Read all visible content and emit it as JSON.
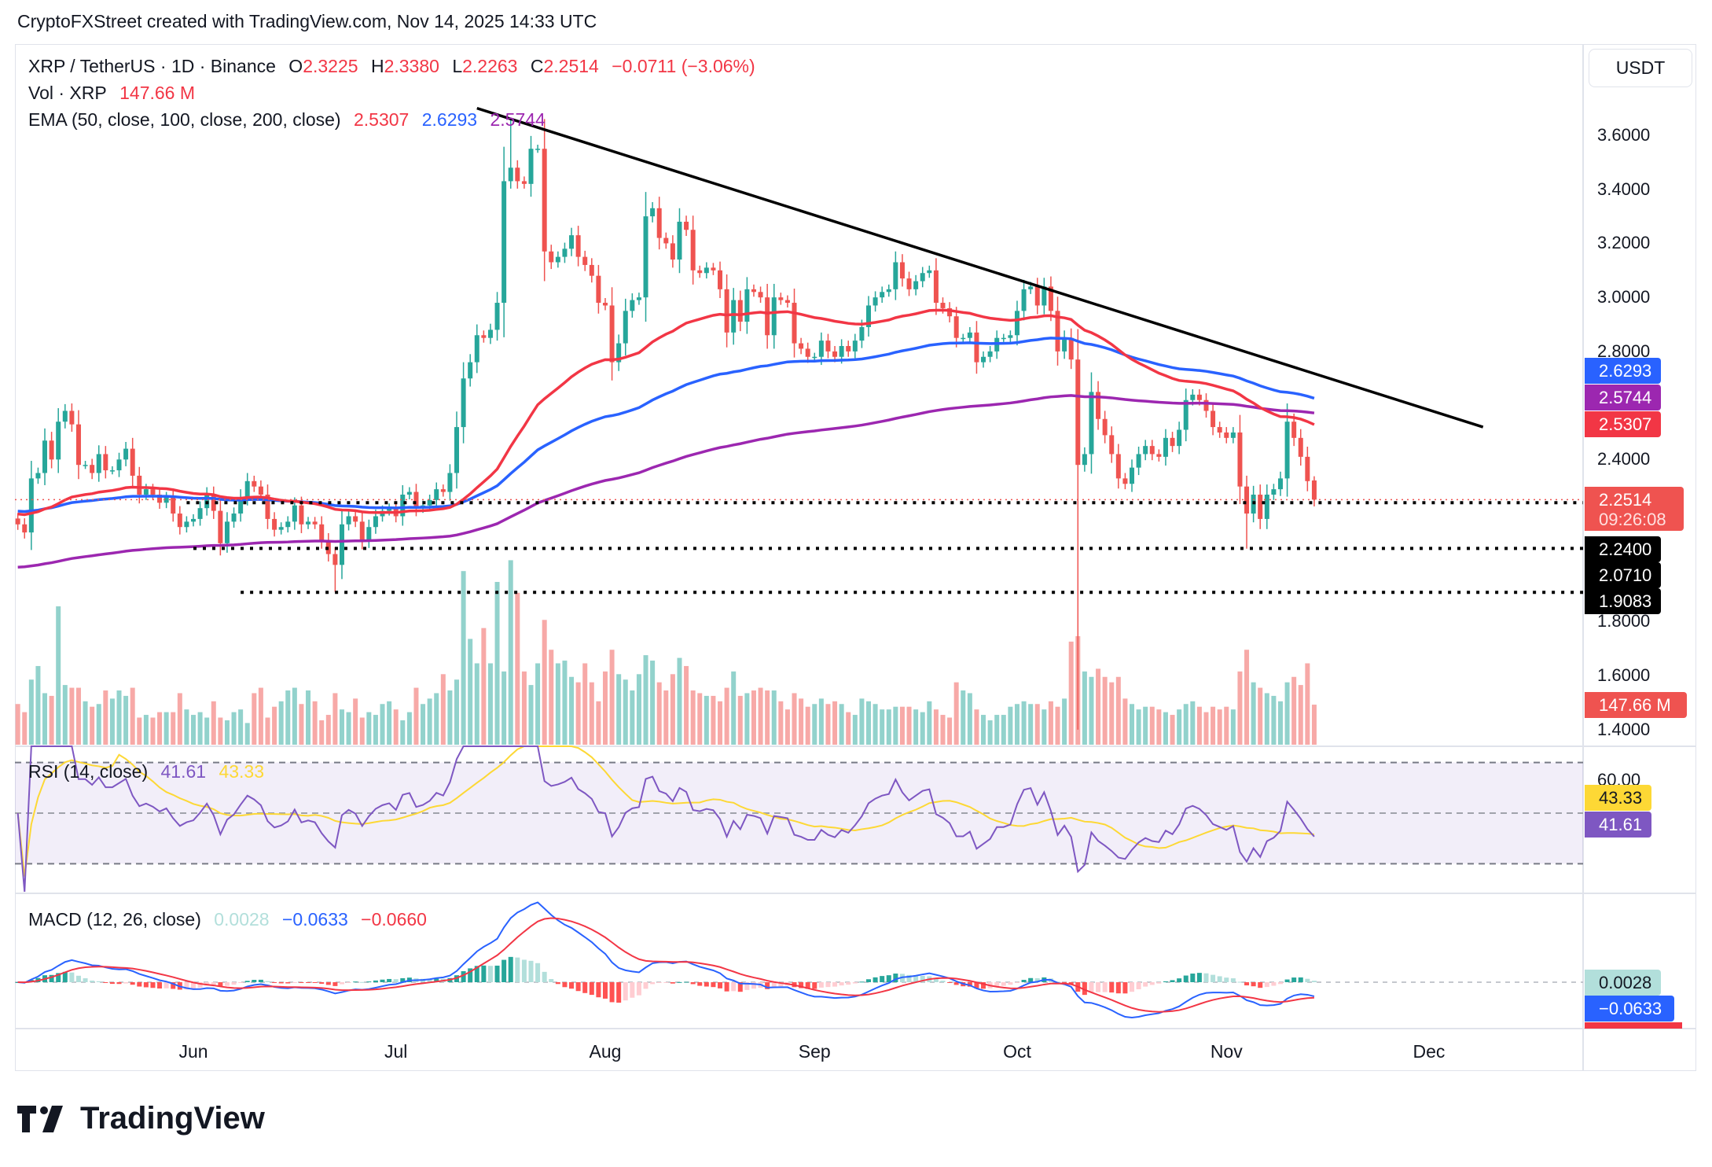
{
  "credit": "CryptoFXStreet created with TradingView.com, Nov 14, 2025 14:33 UTC",
  "legend": {
    "symbol": "XRP / TetherUS · 1D · Binance",
    "o_label": "O",
    "o": "2.3225",
    "h_label": "H",
    "h": "2.3380",
    "l_label": "L",
    "l": "2.2263",
    "c_label": "C",
    "c": "2.2514",
    "change": "−0.0711 (−3.06%)",
    "vol_label": "Vol · XRP",
    "vol": "147.66 M",
    "ema_label": "EMA (50, close, 100, close, 200, close)",
    "ema50": "2.5307",
    "ema100": "2.6293",
    "ema200": "2.5744",
    "rsi_label": "RSI (14, close)",
    "rsi": "41.61",
    "rsi_ma": "43.33",
    "macd_label": "MACD (12, 26, close)",
    "macd_hist": "0.0028",
    "macd": "−0.0633",
    "macd_signal": "−0.0660"
  },
  "currency_button": "USDT",
  "axis": {
    "price_ticks": [
      "3.6000",
      "3.4000",
      "3.2000",
      "3.0000",
      "2.8000",
      "2.4000",
      "1.8000",
      "1.6000",
      "1.4000"
    ],
    "rsi_tick": "60.00",
    "months": [
      {
        "label": "Jun",
        "date": "2025-06-01"
      },
      {
        "label": "Jul",
        "date": "2025-07-01"
      },
      {
        "label": "Aug",
        "date": "2025-08-01"
      },
      {
        "label": "Sep",
        "date": "2025-09-01"
      },
      {
        "label": "Oct",
        "date": "2025-10-01"
      },
      {
        "label": "Nov",
        "date": "2025-11-01"
      },
      {
        "label": "Dec",
        "date": "2025-12-01"
      }
    ]
  },
  "price_labels": {
    "ema100": "2.6293",
    "ema200": "2.5744",
    "ema50": "2.5307",
    "last": "2.2514",
    "countdown": "09:26:08",
    "support1": "2.2400",
    "support2": "2.0710",
    "support3": "1.9083",
    "volume": "147.66 M",
    "rsi_ma": "43.33",
    "rsi": "41.61",
    "macd_hist": "0.0028",
    "macd": "−0.0633"
  },
  "colors": {
    "up": "#26a69a",
    "down": "#ef5350",
    "ema50": "#f23645",
    "ema100": "#2962ff",
    "ema200": "#9c27b0",
    "rsi": "#7e57c2",
    "rsi_ma": "#fdd835",
    "macd": "#2962ff",
    "signal": "#f23645"
  },
  "chart_data": {
    "type": "candlestick",
    "symbol": "XRP / TetherUS",
    "interval": "1D",
    "y_range": [
      1.4,
      3.6
    ],
    "y_unit": "USDT",
    "ema_start": {
      "ema50": 2.2,
      "ema100": 2.21,
      "ema200": 2.0
    },
    "trendline": [
      {
        "date": "2025-07-13",
        "price": 3.7
      },
      {
        "date": "2025-12-09",
        "price": 2.52
      }
    ],
    "horizontal_levels": [
      {
        "price": 2.2514,
        "style": "red-dotted",
        "label": "2.2514"
      },
      {
        "price": 2.24,
        "style": "black-dotted",
        "from": "2025-05-31",
        "label": "2.2400"
      },
      {
        "price": 2.071,
        "style": "black-dotted",
        "from": "2025-06-01",
        "label": "2.0710"
      },
      {
        "price": 1.9083,
        "style": "black-dotted",
        "from": "2025-06-08",
        "label": "1.9083"
      }
    ],
    "wick_extremes": [
      {
        "date": "2025-07-18",
        "high": 3.66
      },
      {
        "date": "2025-06-22",
        "low": 1.91
      },
      {
        "date": "2025-10-10",
        "low": 1.4
      },
      {
        "date": "2025-11-04",
        "low": 2.07
      }
    ],
    "last_bar": {
      "open": 2.3225,
      "high": 2.338,
      "low": 2.2263,
      "close": 2.2514,
      "volume_m": 147.66
    },
    "candle_fields": [
      "date",
      "close",
      "volume_m"
    ],
    "candles": [
      [
        "2025-05-06",
        2.16,
        150
      ],
      [
        "2025-05-07",
        2.13,
        120
      ],
      [
        "2025-05-08",
        2.33,
        240
      ],
      [
        "2025-05-09",
        2.35,
        290
      ],
      [
        "2025-05-10",
        2.47,
        190
      ],
      [
        "2025-05-11",
        2.4,
        180
      ],
      [
        "2025-05-12",
        2.54,
        510
      ],
      [
        "2025-05-13",
        2.58,
        220
      ],
      [
        "2025-05-14",
        2.53,
        210
      ],
      [
        "2025-05-15",
        2.38,
        210
      ],
      [
        "2025-05-16",
        2.38,
        160
      ],
      [
        "2025-05-17",
        2.35,
        140
      ],
      [
        "2025-05-18",
        2.42,
        150
      ],
      [
        "2025-05-19",
        2.36,
        200
      ],
      [
        "2025-05-20",
        2.36,
        170
      ],
      [
        "2025-05-21",
        2.4,
        200
      ],
      [
        "2025-05-22",
        2.44,
        180
      ],
      [
        "2025-05-23",
        2.34,
        210
      ],
      [
        "2025-05-24",
        2.27,
        100
      ],
      [
        "2025-05-25",
        2.29,
        110
      ],
      [
        "2025-05-26",
        2.27,
        100
      ],
      [
        "2025-05-27",
        2.24,
        120
      ],
      [
        "2025-05-28",
        2.26,
        120
      ],
      [
        "2025-05-29",
        2.2,
        120
      ],
      [
        "2025-05-30",
        2.15,
        190
      ],
      [
        "2025-05-31",
        2.17,
        130
      ],
      [
        "2025-06-01",
        2.18,
        110
      ],
      [
        "2025-06-02",
        2.22,
        120
      ],
      [
        "2025-06-03",
        2.27,
        100
      ],
      [
        "2025-06-04",
        2.21,
        160
      ],
      [
        "2025-06-05",
        2.09,
        100
      ],
      [
        "2025-06-06",
        2.17,
        90
      ],
      [
        "2025-06-07",
        2.2,
        120
      ],
      [
        "2025-06-08",
        2.26,
        130
      ],
      [
        "2025-06-09",
        2.32,
        80
      ],
      [
        "2025-06-10",
        2.3,
        190
      ],
      [
        "2025-06-11",
        2.27,
        210
      ],
      [
        "2025-06-12",
        2.18,
        100
      ],
      [
        "2025-06-13",
        2.14,
        140
      ],
      [
        "2025-06-14",
        2.15,
        160
      ],
      [
        "2025-06-15",
        2.17,
        200
      ],
      [
        "2025-06-16",
        2.23,
        210
      ],
      [
        "2025-06-17",
        2.16,
        150
      ],
      [
        "2025-06-18",
        2.17,
        200
      ],
      [
        "2025-06-19",
        2.16,
        160
      ],
      [
        "2025-06-20",
        2.1,
        90
      ],
      [
        "2025-06-21",
        2.05,
        110
      ],
      [
        "2025-06-22",
        2.01,
        190
      ],
      [
        "2025-06-23",
        2.16,
        130
      ],
      [
        "2025-06-24",
        2.19,
        120
      ],
      [
        "2025-06-25",
        2.17,
        170
      ],
      [
        "2025-06-26",
        2.1,
        100
      ],
      [
        "2025-06-27",
        2.15,
        120
      ],
      [
        "2025-06-28",
        2.19,
        110
      ],
      [
        "2025-06-29",
        2.21,
        150
      ],
      [
        "2025-06-30",
        2.22,
        160
      ],
      [
        "2025-07-01",
        2.19,
        130
      ],
      [
        "2025-07-02",
        2.27,
        90
      ],
      [
        "2025-07-03",
        2.28,
        120
      ],
      [
        "2025-07-04",
        2.22,
        210
      ],
      [
        "2025-07-05",
        2.23,
        150
      ],
      [
        "2025-07-06",
        2.25,
        170
      ],
      [
        "2025-07-07",
        2.29,
        190
      ],
      [
        "2025-07-08",
        2.28,
        260
      ],
      [
        "2025-07-09",
        2.35,
        200
      ],
      [
        "2025-07-10",
        2.52,
        240
      ],
      [
        "2025-07-11",
        2.7,
        640
      ],
      [
        "2025-07-12",
        2.76,
        390
      ],
      [
        "2025-07-13",
        2.86,
        300
      ],
      [
        "2025-07-14",
        2.85,
        430
      ],
      [
        "2025-07-15",
        2.88,
        300
      ],
      [
        "2025-07-16",
        2.98,
        600
      ],
      [
        "2025-07-17",
        3.43,
        270
      ],
      [
        "2025-07-18",
        3.48,
        680
      ],
      [
        "2025-07-19",
        3.43,
        560
      ],
      [
        "2025-07-20",
        3.42,
        270
      ],
      [
        "2025-07-21",
        3.55,
        220
      ],
      [
        "2025-07-22",
        3.55,
        300
      ],
      [
        "2025-07-23",
        3.17,
        460
      ],
      [
        "2025-07-24",
        3.13,
        350
      ],
      [
        "2025-07-25",
        3.15,
        300
      ],
      [
        "2025-07-26",
        3.18,
        310
      ],
      [
        "2025-07-27",
        3.23,
        250
      ],
      [
        "2025-07-28",
        3.15,
        230
      ],
      [
        "2025-07-29",
        3.12,
        300
      ],
      [
        "2025-07-30",
        3.08,
        230
      ],
      [
        "2025-07-31",
        2.98,
        160
      ],
      [
        "2025-08-01",
        2.97,
        270
      ],
      [
        "2025-08-02",
        2.76,
        350
      ],
      [
        "2025-08-03",
        2.83,
        260
      ],
      [
        "2025-08-04",
        2.95,
        240
      ],
      [
        "2025-08-05",
        2.99,
        200
      ],
      [
        "2025-08-06",
        3.0,
        260
      ],
      [
        "2025-08-07",
        3.3,
        330
      ],
      [
        "2025-08-08",
        3.33,
        310
      ],
      [
        "2025-08-09",
        3.22,
        230
      ],
      [
        "2025-08-10",
        3.2,
        200
      ],
      [
        "2025-08-11",
        3.14,
        260
      ],
      [
        "2025-08-12",
        3.28,
        320
      ],
      [
        "2025-08-13",
        3.25,
        290
      ],
      [
        "2025-08-14",
        3.1,
        200
      ],
      [
        "2025-08-15",
        3.09,
        190
      ],
      [
        "2025-08-16",
        3.11,
        180
      ],
      [
        "2025-08-17",
        3.1,
        180
      ],
      [
        "2025-08-18",
        3.03,
        160
      ],
      [
        "2025-08-19",
        2.87,
        210
      ],
      [
        "2025-08-20",
        2.99,
        270
      ],
      [
        "2025-08-21",
        2.91,
        180
      ],
      [
        "2025-08-22",
        3.03,
        190
      ],
      [
        "2025-08-23",
        3.02,
        200
      ],
      [
        "2025-08-24",
        3.0,
        210
      ],
      [
        "2025-08-25",
        2.86,
        200
      ],
      [
        "2025-08-26",
        3.0,
        200
      ],
      [
        "2025-08-27",
        2.99,
        160
      ],
      [
        "2025-08-28",
        2.98,
        130
      ],
      [
        "2025-08-29",
        2.83,
        190
      ],
      [
        "2025-08-30",
        2.81,
        170
      ],
      [
        "2025-08-31",
        2.78,
        140
      ],
      [
        "2025-09-01",
        2.78,
        150
      ],
      [
        "2025-09-02",
        2.84,
        170
      ],
      [
        "2025-09-03",
        2.8,
        150
      ],
      [
        "2025-09-04",
        2.78,
        160
      ],
      [
        "2025-09-05",
        2.82,
        150
      ],
      [
        "2025-09-06",
        2.8,
        120
      ],
      [
        "2025-09-07",
        2.84,
        110
      ],
      [
        "2025-09-08",
        2.89,
        170
      ],
      [
        "2025-09-09",
        2.97,
        160
      ],
      [
        "2025-09-10",
        3.0,
        150
      ],
      [
        "2025-09-11",
        3.02,
        130
      ],
      [
        "2025-09-12",
        3.03,
        130
      ],
      [
        "2025-09-13",
        3.13,
        140
      ],
      [
        "2025-09-14",
        3.07,
        140
      ],
      [
        "2025-09-15",
        3.03,
        140
      ],
      [
        "2025-09-16",
        3.06,
        130
      ],
      [
        "2025-09-17",
        3.09,
        120
      ],
      [
        "2025-09-18",
        3.1,
        160
      ],
      [
        "2025-09-19",
        2.98,
        130
      ],
      [
        "2025-09-20",
        2.96,
        110
      ],
      [
        "2025-09-21",
        2.93,
        100
      ],
      [
        "2025-09-22",
        2.85,
        230
      ],
      [
        "2025-09-23",
        2.85,
        200
      ],
      [
        "2025-09-24",
        2.87,
        190
      ],
      [
        "2025-09-25",
        2.76,
        130
      ],
      [
        "2025-09-26",
        2.78,
        110
      ],
      [
        "2025-09-27",
        2.8,
        90
      ],
      [
        "2025-09-28",
        2.85,
        110
      ],
      [
        "2025-09-29",
        2.85,
        110
      ],
      [
        "2025-09-30",
        2.86,
        140
      ],
      [
        "2025-10-01",
        2.95,
        150
      ],
      [
        "2025-10-02",
        3.03,
        160
      ],
      [
        "2025-10-03",
        3.04,
        150
      ],
      [
        "2025-10-04",
        2.97,
        150
      ],
      [
        "2025-10-05",
        3.04,
        130
      ],
      [
        "2025-10-06",
        2.95,
        160
      ],
      [
        "2025-10-07",
        2.8,
        140
      ],
      [
        "2025-10-08",
        2.85,
        170
      ],
      [
        "2025-10-09",
        2.77,
        380
      ],
      [
        "2025-10-10",
        2.38,
        400
      ],
      [
        "2025-10-11",
        2.42,
        270
      ],
      [
        "2025-10-12",
        2.65,
        250
      ],
      [
        "2025-10-13",
        2.55,
        280
      ],
      [
        "2025-10-14",
        2.49,
        250
      ],
      [
        "2025-10-15",
        2.42,
        230
      ],
      [
        "2025-10-16",
        2.33,
        250
      ],
      [
        "2025-10-17",
        2.31,
        170
      ],
      [
        "2025-10-18",
        2.37,
        150
      ],
      [
        "2025-10-19",
        2.42,
        130
      ],
      [
        "2025-10-20",
        2.45,
        140
      ],
      [
        "2025-10-21",
        2.42,
        140
      ],
      [
        "2025-10-22",
        2.41,
        130
      ],
      [
        "2025-10-23",
        2.48,
        120
      ],
      [
        "2025-10-24",
        2.45,
        110
      ],
      [
        "2025-10-25",
        2.51,
        130
      ],
      [
        "2025-10-26",
        2.62,
        150
      ],
      [
        "2025-10-27",
        2.64,
        160
      ],
      [
        "2025-10-28",
        2.62,
        140
      ],
      [
        "2025-10-29",
        2.58,
        120
      ],
      [
        "2025-10-30",
        2.52,
        140
      ],
      [
        "2025-10-31",
        2.5,
        130
      ],
      [
        "2025-11-01",
        2.48,
        140
      ],
      [
        "2025-11-02",
        2.5,
        130
      ],
      [
        "2025-11-03",
        2.3,
        270
      ],
      [
        "2025-11-04",
        2.2,
        350
      ],
      [
        "2025-11-05",
        2.27,
        230
      ],
      [
        "2025-11-06",
        2.18,
        210
      ],
      [
        "2025-11-07",
        2.27,
        190
      ],
      [
        "2025-11-08",
        2.29,
        180
      ],
      [
        "2025-11-09",
        2.33,
        160
      ],
      [
        "2025-11-10",
        2.54,
        230
      ],
      [
        "2025-11-11",
        2.48,
        250
      ],
      [
        "2025-11-12",
        2.41,
        220
      ],
      [
        "2025-11-13",
        2.32,
        300
      ],
      [
        "2025-11-14",
        2.2514,
        147.66
      ]
    ]
  },
  "logo_text": "TradingView"
}
